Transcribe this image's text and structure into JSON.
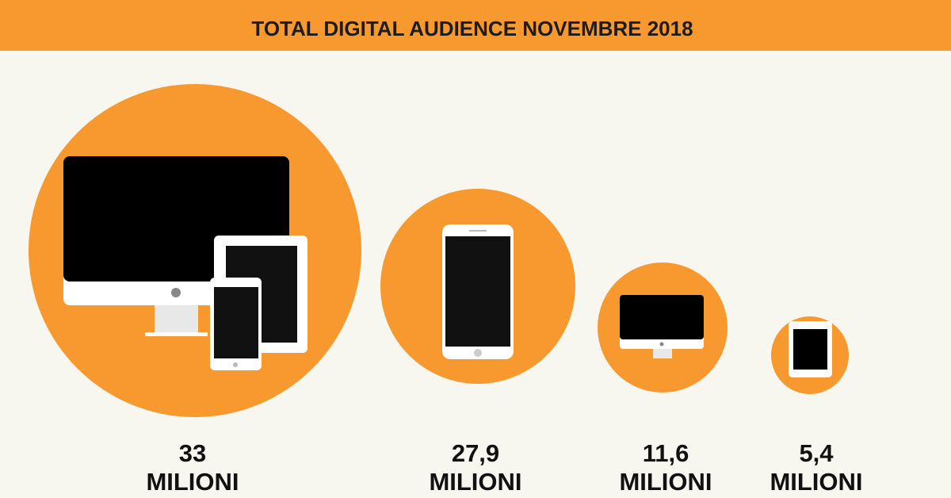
{
  "header": {
    "title": "TOTAL DIGITAL AUDIENCE NOVEMBRE 2018"
  },
  "items": [
    {
      "value": "33",
      "unit": "MILIONI"
    },
    {
      "value": "27,9",
      "unit": "MILIONI"
    },
    {
      "value": "11,6",
      "unit": "MILIONI"
    },
    {
      "value": "5,4",
      "unit": "MILIONI"
    }
  ]
}
